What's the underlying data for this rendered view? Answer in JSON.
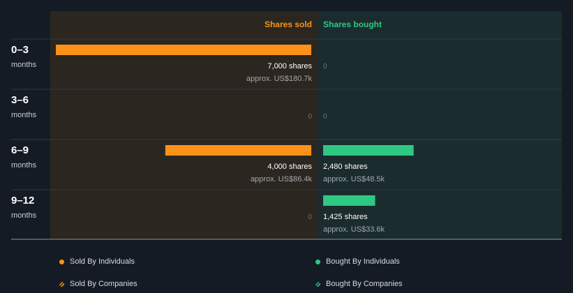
{
  "chart_data": {
    "type": "bar",
    "orientation": "horizontal-diverging",
    "column_headers": {
      "sold": "Shares sold",
      "bought": "Shares bought"
    },
    "categories": [
      {
        "range": "0–3",
        "unit": "months"
      },
      {
        "range": "3–6",
        "unit": "months"
      },
      {
        "range": "6–9",
        "unit": "months"
      },
      {
        "range": "9–12",
        "unit": "months"
      }
    ],
    "series": [
      {
        "name": "Shares sold",
        "values": [
          7000,
          0,
          4000,
          0
        ],
        "labels": [
          "7,000 shares",
          "0",
          "4,000 shares",
          "0"
        ],
        "values_note": [
          "approx. US$180.7k",
          "",
          "approx. US$86.4k",
          ""
        ]
      },
      {
        "name": "Shares bought",
        "values": [
          0,
          0,
          2480,
          1425
        ],
        "labels": [
          "0",
          "0",
          "2,480 shares",
          "1,425 shares"
        ],
        "values_note": [
          "",
          "",
          "approx. US$48.5k",
          "approx. US$33.6k"
        ]
      }
    ],
    "max_value": 7000,
    "legend": [
      {
        "label": "Sold By Individuals",
        "style": "dot",
        "color": "#fd9219"
      },
      {
        "label": "Sold By Companies",
        "style": "hatch",
        "color": "#fd9219"
      },
      {
        "label": "Bought By Individuals",
        "style": "dot",
        "color": "#2ec883"
      },
      {
        "label": "Bought By Companies",
        "style": "hatch",
        "color": "#2ec883"
      }
    ],
    "colors": {
      "sold": "#fd9219",
      "bought": "#2ec883",
      "sold_panel": "#2b2620",
      "bought_panel": "#1b2c2e",
      "background": "#151b24"
    },
    "legend_position": "bottom"
  }
}
